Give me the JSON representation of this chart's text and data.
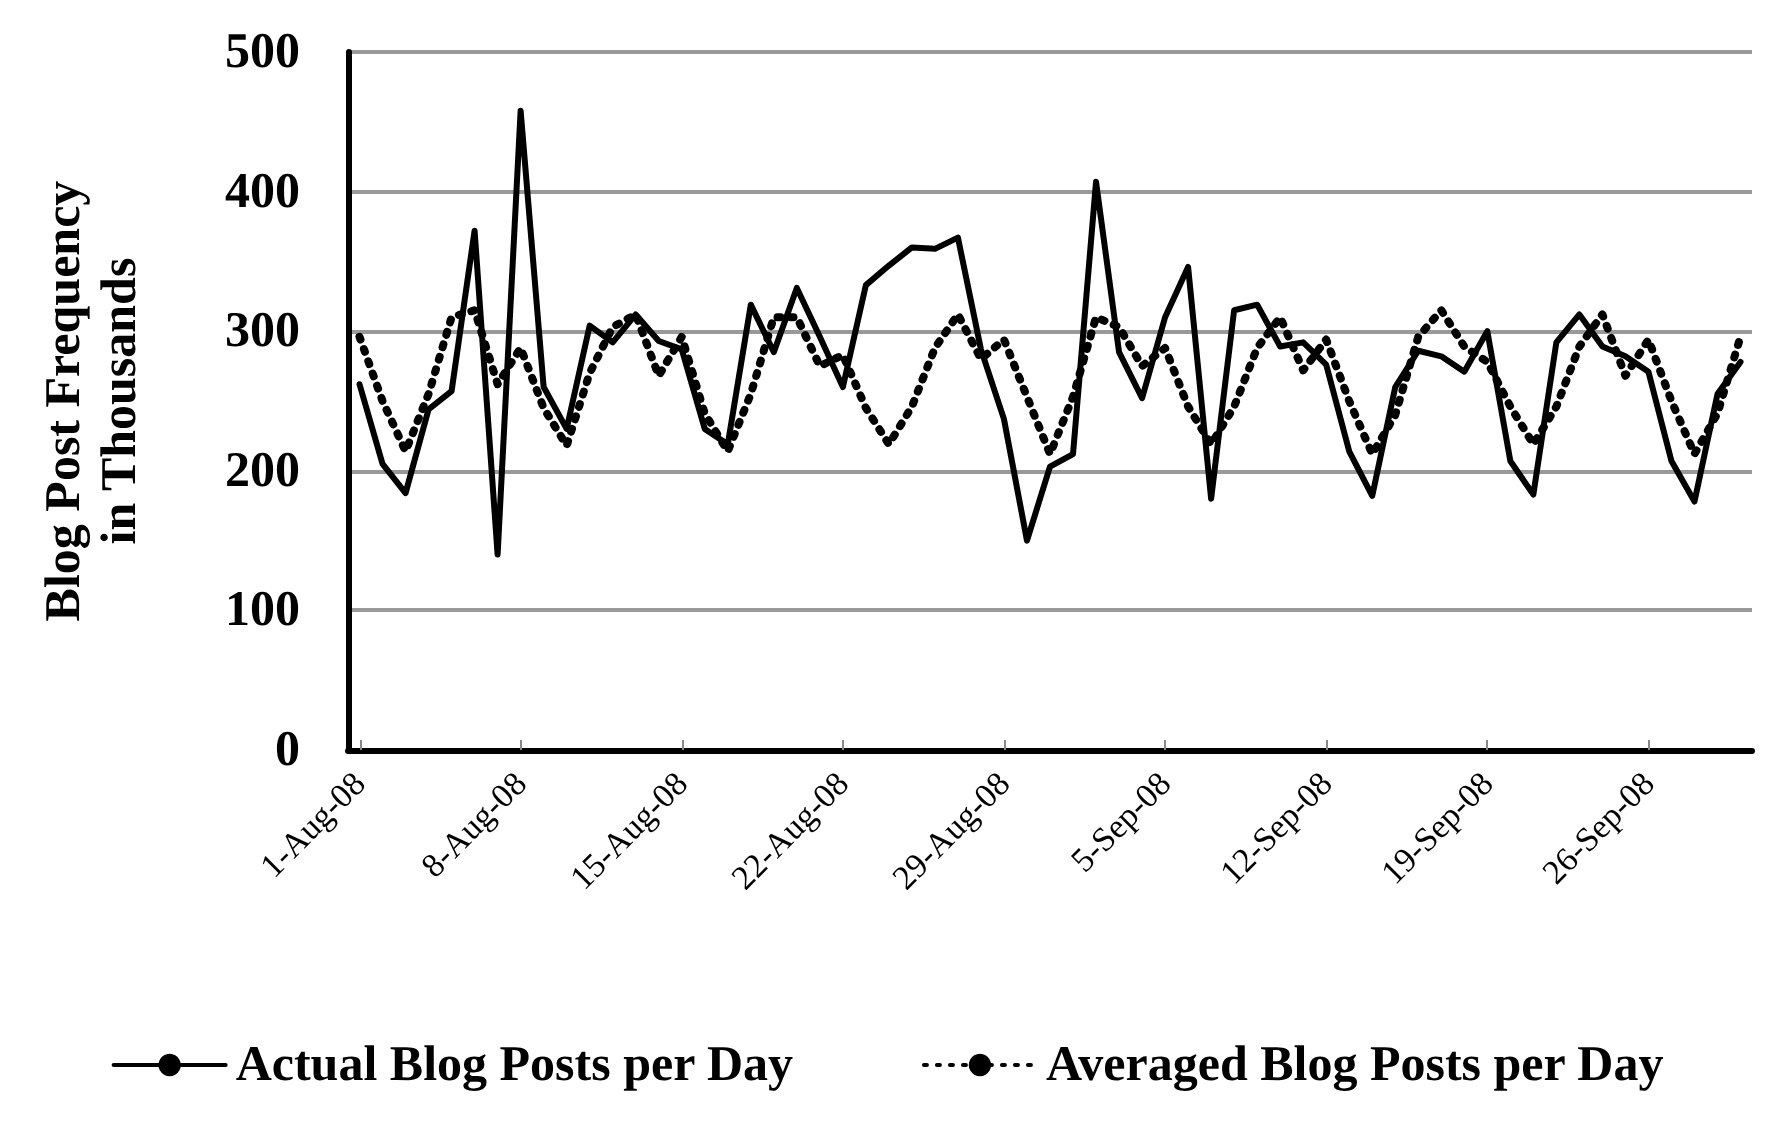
{
  "chart_data": {
    "type": "line",
    "ylabel": "Blog Post Frequency\nin Thousands",
    "categories": [
      "1-Aug-08",
      null,
      null,
      null,
      null,
      null,
      null,
      "8-Aug-08",
      null,
      null,
      null,
      null,
      null,
      null,
      "15-Aug-08",
      null,
      null,
      null,
      null,
      null,
      null,
      "22-Aug-08",
      null,
      null,
      null,
      null,
      null,
      null,
      "29-Aug-08",
      null,
      null,
      null,
      null,
      null,
      null,
      "5-Sep-08",
      null,
      null,
      null,
      null,
      null,
      null,
      "12-Sep-08",
      null,
      null,
      null,
      null,
      null,
      null,
      "19-Sep-08",
      null,
      null,
      null,
      null,
      null,
      null,
      "26-Sep-08",
      null,
      null,
      null,
      null
    ],
    "series": [
      {
        "name": "Actual Blog Posts per Day",
        "color": "#000000",
        "line_style": "solid",
        "values": [
          262,
          205,
          184,
          244,
          257,
          372,
          140,
          458,
          260,
          230,
          304,
          292,
          312,
          293,
          287,
          230,
          219,
          319,
          285,
          331,
          296,
          260,
          333,
          347,
          360,
          359,
          367,
          287,
          237,
          150,
          203,
          212,
          407,
          285,
          252,
          310,
          346,
          180,
          315,
          319,
          289,
          292,
          276,
          214,
          182,
          260,
          286,
          282,
          271,
          300,
          207,
          183,
          292,
          312,
          289,
          282,
          271,
          207,
          178,
          255,
          278
        ]
      },
      {
        "name": "Averaged Blog Posts per Day",
        "color": "#000000",
        "line_style": "dotted",
        "values": [
          296,
          250,
          214,
          255,
          310,
          315,
          262,
          288,
          245,
          218,
          270,
          303,
          312,
          268,
          296,
          241,
          214,
          255,
          310,
          310,
          275,
          283,
          245,
          219,
          246,
          288,
          312,
          280,
          294,
          253,
          212,
          253,
          310,
          303,
          275,
          288,
          246,
          219,
          246,
          288,
          310,
          272,
          294,
          250,
          212,
          240,
          296,
          315,
          289,
          278,
          246,
          219,
          246,
          289,
          312,
          268,
          294,
          250,
          212,
          241,
          296
        ]
      }
    ],
    "ylim": [
      0,
      500
    ],
    "yticks": [
      0,
      100,
      200,
      300,
      400,
      500
    ],
    "grid": "y",
    "legend": "bottom",
    "marker": "none"
  }
}
